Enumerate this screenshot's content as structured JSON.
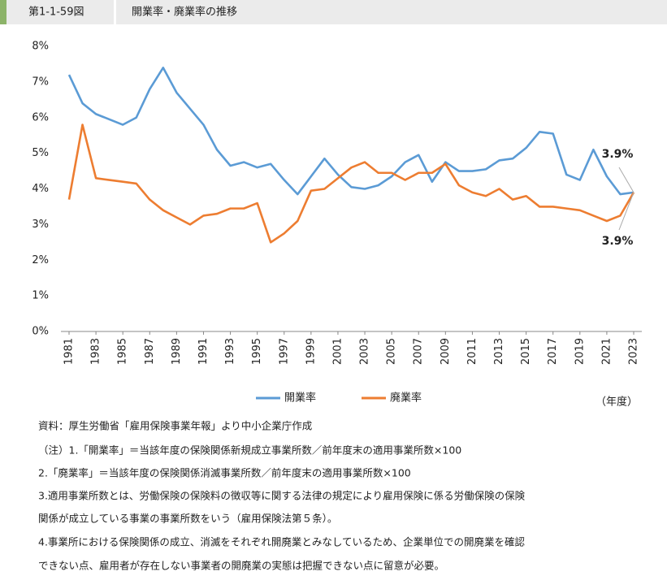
{
  "header": {
    "figure_no": "第1-1-59図",
    "title": "開業率・廃業率の推移"
  },
  "chart_data": {
    "type": "line",
    "x": [
      1981,
      1982,
      1983,
      1984,
      1985,
      1986,
      1987,
      1988,
      1989,
      1990,
      1991,
      1992,
      1993,
      1994,
      1995,
      1996,
      1997,
      1998,
      1999,
      2000,
      2001,
      2002,
      2003,
      2004,
      2005,
      2006,
      2007,
      2008,
      2009,
      2010,
      2011,
      2012,
      2013,
      2014,
      2015,
      2016,
      2017,
      2018,
      2019,
      2020,
      2021,
      2022,
      2023
    ],
    "xlim": [
      1981,
      2023
    ],
    "xticks": [
      1981,
      1983,
      1985,
      1987,
      1989,
      1991,
      1993,
      1995,
      1997,
      1999,
      2001,
      2003,
      2005,
      2007,
      2009,
      2011,
      2013,
      2015,
      2017,
      2019,
      2021,
      2023
    ],
    "x_label": "（年度）",
    "ylim": [
      0,
      8
    ],
    "yticks": [
      {
        "value": 0,
        "label": "0%"
      },
      {
        "value": 1,
        "label": "1%"
      },
      {
        "value": 2,
        "label": "2%"
      },
      {
        "value": 3,
        "label": "3%"
      },
      {
        "value": 4,
        "label": "4%"
      },
      {
        "value": 5,
        "label": "5%"
      },
      {
        "value": 6,
        "label": "6%"
      },
      {
        "value": 7,
        "label": "7%"
      },
      {
        "value": 8,
        "label": "8%"
      }
    ],
    "grid": false,
    "legend": "bottom",
    "series": [
      {
        "name": "開業率",
        "color": "#5b9bd5",
        "values": [
          7.2,
          6.4,
          6.1,
          5.95,
          5.8,
          6.0,
          6.8,
          7.4,
          6.7,
          6.25,
          5.8,
          5.1,
          4.65,
          4.75,
          4.6,
          4.7,
          4.25,
          3.85,
          4.35,
          4.85,
          4.4,
          4.05,
          4.0,
          4.1,
          4.35,
          4.75,
          4.95,
          4.2,
          4.75,
          4.5,
          4.5,
          4.55,
          4.8,
          4.85,
          5.15,
          5.6,
          5.55,
          4.4,
          4.25,
          5.1,
          4.35,
          3.85,
          3.9
        ],
        "end_label": "3.9%"
      },
      {
        "name": "廃業率",
        "color": "#ed7d31",
        "values": [
          3.7,
          5.8,
          4.3,
          4.25,
          4.2,
          4.15,
          3.7,
          3.4,
          3.2,
          3.0,
          3.25,
          3.3,
          3.45,
          3.45,
          3.6,
          2.5,
          2.75,
          3.1,
          3.95,
          4.0,
          4.3,
          4.6,
          4.75,
          4.45,
          4.45,
          4.25,
          4.45,
          4.45,
          4.7,
          4.1,
          3.9,
          3.8,
          4.0,
          3.7,
          3.8,
          3.5,
          3.5,
          3.45,
          3.4,
          3.25,
          3.1,
          3.25,
          3.9
        ],
        "end_label": "3.9%"
      }
    ]
  },
  "notes": [
    "資料：厚生労働省「雇用保険事業年報」より中小企業庁作成",
    "（注）1.「開業率」＝当該年度の保険関係新規成立事業所数／前年度末の適用事業所数×100",
    "2.「廃業率」＝当該年度の保険関係消滅事業所数／前年度末の適用事業所数×100",
    "3.適用事業所数とは、労働保険の保険料の徴収等に関する法律の規定により雇用保険に係る労働保険の保険",
    "関係が成立している事業の事業所数をいう（雇用保険法第５条）。",
    "4.事業所における保険関係の成立、消滅をそれぞれ開廃業とみなしているため、企業単位での開廃業を確認",
    "できない点、雇用者が存在しない事業者の開廃業の実態は把握できない点に留意が必要。"
  ]
}
